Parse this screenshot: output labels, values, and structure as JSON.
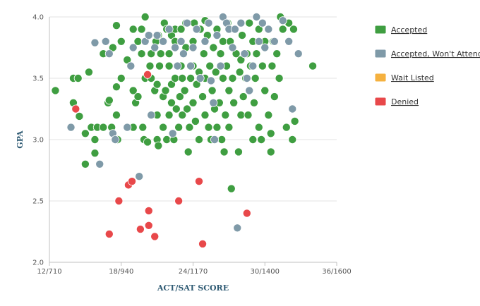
{
  "chart_data": {
    "type": "scatter",
    "title": "",
    "xlabel": "ACT/SAT SCORE",
    "ylabel": "GPA",
    "xlim": [
      12,
      36
    ],
    "ylim": [
      2.0,
      4.0
    ],
    "x_ticks": [
      {
        "value": 12,
        "label": "12/710"
      },
      {
        "value": 18,
        "label": "18/940"
      },
      {
        "value": 24,
        "label": "24/1170"
      },
      {
        "value": 30,
        "label": "30/1400"
      },
      {
        "value": 36,
        "label": "36/1600"
      }
    ],
    "y_ticks": [
      {
        "value": 2.0,
        "label": "2.0"
      },
      {
        "value": 2.5,
        "label": "2.5"
      },
      {
        "value": 3.0,
        "label": "3.0"
      },
      {
        "value": 3.5,
        "label": "3.5"
      },
      {
        "value": 4.0,
        "label": "4.0"
      }
    ],
    "grid": true,
    "legend_position": "right",
    "series": [
      {
        "name": "Accepted",
        "color": "#3f9e41",
        "points": [
          [
            12.5,
            3.4
          ],
          [
            14.0,
            3.3
          ],
          [
            14.0,
            3.5
          ],
          [
            14.4,
            3.5
          ],
          [
            14.5,
            3.19
          ],
          [
            15.0,
            3.05
          ],
          [
            15.0,
            2.8
          ],
          [
            15.3,
            3.55
          ],
          [
            15.5,
            3.1
          ],
          [
            15.8,
            3.0
          ],
          [
            15.8,
            2.89
          ],
          [
            16.0,
            3.1
          ],
          [
            16.5,
            3.1
          ],
          [
            16.5,
            3.7
          ],
          [
            16.9,
            3.3
          ],
          [
            17.0,
            3.32
          ],
          [
            17.2,
            3.1
          ],
          [
            17.3,
            3.75
          ],
          [
            17.6,
            3.93
          ],
          [
            17.6,
            3.43
          ],
          [
            17.6,
            3.2
          ],
          [
            17.7,
            3.0
          ],
          [
            18.0,
            3.5
          ],
          [
            18.0,
            3.8
          ],
          [
            18.5,
            3.65
          ],
          [
            19.0,
            3.1
          ],
          [
            19.0,
            3.4
          ],
          [
            19.0,
            3.9
          ],
          [
            19.2,
            3.3
          ],
          [
            19.4,
            3.35
          ],
          [
            19.4,
            3.8
          ],
          [
            19.7,
            3.7
          ],
          [
            19.7,
            3.9
          ],
          [
            19.8,
            3.1
          ],
          [
            19.9,
            3.0
          ],
          [
            20.0,
            3.5
          ],
          [
            20.0,
            4.0
          ],
          [
            20.2,
            2.98
          ],
          [
            20.4,
            3.6
          ],
          [
            20.5,
            3.2
          ],
          [
            20.5,
            3.5
          ],
          [
            20.5,
            3.7
          ],
          [
            20.8,
            3.4
          ],
          [
            20.9,
            3.8
          ],
          [
            21.0,
            3.0
          ],
          [
            21.0,
            3.2
          ],
          [
            21.0,
            3.45
          ],
          [
            21.1,
            3.85
          ],
          [
            21.1,
            2.95
          ],
          [
            21.2,
            3.6
          ],
          [
            21.3,
            3.7
          ],
          [
            21.5,
            3.1
          ],
          [
            21.5,
            3.35
          ],
          [
            21.6,
            3.95
          ],
          [
            21.7,
            3.4
          ],
          [
            21.8,
            3.9
          ],
          [
            21.8,
            3.0
          ],
          [
            22.0,
            3.6
          ],
          [
            22.0,
            3.7
          ],
          [
            22.0,
            3.2
          ],
          [
            22.2,
            3.3
          ],
          [
            22.2,
            3.45
          ],
          [
            22.2,
            3.85
          ],
          [
            22.4,
            3.0
          ],
          [
            22.5,
            3.5
          ],
          [
            22.5,
            3.8
          ],
          [
            22.5,
            3.9
          ],
          [
            22.6,
            3.25
          ],
          [
            22.8,
            3.1
          ],
          [
            22.9,
            3.35
          ],
          [
            23.0,
            3.6
          ],
          [
            23.0,
            3.9
          ],
          [
            23.1,
            3.5
          ],
          [
            23.1,
            3.2
          ],
          [
            23.3,
            3.4
          ],
          [
            23.4,
            3.75
          ],
          [
            23.4,
            3.95
          ],
          [
            23.5,
            3.25
          ],
          [
            23.6,
            2.9
          ],
          [
            23.7,
            3.1
          ],
          [
            23.8,
            3.5
          ],
          [
            24.0,
            3.6
          ],
          [
            24.0,
            3.8
          ],
          [
            24.0,
            3.3
          ],
          [
            24.1,
            3.95
          ],
          [
            24.2,
            3.15
          ],
          [
            24.3,
            3.45
          ],
          [
            24.5,
            3.0
          ],
          [
            24.5,
            3.55
          ],
          [
            24.6,
            3.9
          ],
          [
            24.8,
            3.35
          ],
          [
            24.9,
            3.7
          ],
          [
            25.0,
            3.2
          ],
          [
            25.0,
            3.5
          ],
          [
            25.0,
            3.97
          ],
          [
            25.2,
            3.85
          ],
          [
            25.3,
            3.1
          ],
          [
            25.4,
            3.6
          ],
          [
            25.5,
            3.0
          ],
          [
            25.6,
            3.4
          ],
          [
            25.7,
            3.75
          ],
          [
            25.8,
            3.25
          ],
          [
            25.9,
            3.55
          ],
          [
            26.0,
            3.9
          ],
          [
            26.0,
            3.1
          ],
          [
            26.2,
            3.3
          ],
          [
            26.3,
            3.7
          ],
          [
            26.4,
            3.0
          ],
          [
            26.5,
            3.5
          ],
          [
            26.5,
            3.8
          ],
          [
            26.6,
            2.9
          ],
          [
            26.7,
            3.2
          ],
          [
            26.8,
            3.6
          ],
          [
            26.9,
            3.95
          ],
          [
            27.0,
            3.4
          ],
          [
            27.0,
            3.1
          ],
          [
            27.1,
            3.8
          ],
          [
            27.2,
            2.6
          ],
          [
            27.3,
            3.5
          ],
          [
            27.4,
            3.3
          ],
          [
            27.5,
            3.9
          ],
          [
            27.6,
            3.7
          ],
          [
            27.8,
            2.9
          ],
          [
            27.9,
            3.55
          ],
          [
            28.0,
            3.2
          ],
          [
            28.0,
            3.65
          ],
          [
            28.1,
            3.85
          ],
          [
            28.2,
            3.35
          ],
          [
            28.4,
            3.5
          ],
          [
            28.5,
            3.7
          ],
          [
            28.6,
            3.2
          ],
          [
            28.7,
            3.95
          ],
          [
            28.8,
            3.6
          ],
          [
            29.0,
            3.8
          ],
          [
            29.0,
            3.0
          ],
          [
            29.1,
            3.3
          ],
          [
            29.2,
            3.5
          ],
          [
            29.3,
            3.7
          ],
          [
            29.5,
            3.1
          ],
          [
            29.5,
            3.9
          ],
          [
            29.7,
            3.0
          ],
          [
            29.8,
            3.6
          ],
          [
            30.0,
            3.4
          ],
          [
            30.0,
            3.8
          ],
          [
            30.3,
            3.2
          ],
          [
            30.5,
            3.05
          ],
          [
            30.5,
            2.9
          ],
          [
            30.6,
            3.6
          ],
          [
            30.7,
            3.8
          ],
          [
            30.8,
            3.35
          ],
          [
            31.0,
            3.7
          ],
          [
            31.2,
            3.5
          ],
          [
            31.3,
            4.0
          ],
          [
            31.5,
            3.9
          ],
          [
            31.8,
            3.1
          ],
          [
            32.0,
            3.95
          ],
          [
            32.3,
            3.0
          ],
          [
            32.4,
            3.9
          ],
          [
            32.5,
            3.15
          ],
          [
            34.0,
            3.6
          ]
        ]
      },
      {
        "name": "Accepted, Won't Attend",
        "color": "#7f9aa8",
        "points": [
          [
            13.8,
            3.1
          ],
          [
            15.8,
            3.79
          ],
          [
            16.2,
            2.8
          ],
          [
            16.7,
            3.8
          ],
          [
            17.0,
            3.7
          ],
          [
            17.3,
            3.05
          ],
          [
            17.5,
            3.0
          ],
          [
            18.5,
            3.1
          ],
          [
            18.8,
            3.6
          ],
          [
            19.0,
            3.75
          ],
          [
            19.5,
            2.7
          ],
          [
            20.0,
            3.8
          ],
          [
            20.3,
            3.85
          ],
          [
            20.5,
            3.2
          ],
          [
            20.8,
            3.75
          ],
          [
            21.0,
            3.85
          ],
          [
            21.5,
            3.8
          ],
          [
            22.0,
            3.9
          ],
          [
            22.3,
            3.05
          ],
          [
            22.5,
            3.75
          ],
          [
            22.7,
            3.6
          ],
          [
            23.0,
            3.8
          ],
          [
            23.2,
            3.7
          ],
          [
            23.5,
            3.95
          ],
          [
            23.8,
            3.6
          ],
          [
            24.0,
            3.75
          ],
          [
            24.3,
            3.9
          ],
          [
            24.6,
            3.5
          ],
          [
            25.0,
            3.8
          ],
          [
            25.3,
            3.95
          ],
          [
            25.5,
            3.48
          ],
          [
            25.7,
            3.3
          ],
          [
            25.8,
            3.0
          ],
          [
            26.0,
            3.85
          ],
          [
            26.3,
            3.6
          ],
          [
            26.5,
            4.0
          ],
          [
            26.8,
            3.95
          ],
          [
            27.0,
            3.9
          ],
          [
            27.3,
            3.75
          ],
          [
            27.5,
            3.9
          ],
          [
            27.7,
            2.28
          ],
          [
            28.0,
            3.95
          ],
          [
            28.3,
            3.7
          ],
          [
            28.5,
            3.5
          ],
          [
            28.7,
            3.4
          ],
          [
            29.0,
            3.6
          ],
          [
            29.3,
            4.0
          ],
          [
            29.5,
            3.8
          ],
          [
            29.8,
            3.95
          ],
          [
            30.0,
            3.75
          ],
          [
            30.3,
            3.9
          ],
          [
            30.8,
            3.8
          ],
          [
            31.5,
            3.97
          ],
          [
            32.0,
            3.8
          ],
          [
            32.3,
            3.25
          ],
          [
            32.8,
            3.7
          ]
        ]
      },
      {
        "name": "Wait Listed",
        "color": "#f5b13f",
        "points": []
      },
      {
        "name": "Denied",
        "color": "#e8484a",
        "points": [
          [
            14.2,
            3.25
          ],
          [
            17.0,
            2.23
          ],
          [
            17.8,
            2.5
          ],
          [
            18.6,
            2.63
          ],
          [
            18.9,
            2.66
          ],
          [
            19.6,
            2.27
          ],
          [
            20.2,
            3.53
          ],
          [
            20.3,
            2.42
          ],
          [
            20.3,
            2.3
          ],
          [
            20.8,
            2.21
          ],
          [
            22.8,
            2.5
          ],
          [
            24.5,
            2.66
          ],
          [
            24.8,
            2.15
          ],
          [
            28.5,
            2.4
          ]
        ]
      }
    ]
  }
}
